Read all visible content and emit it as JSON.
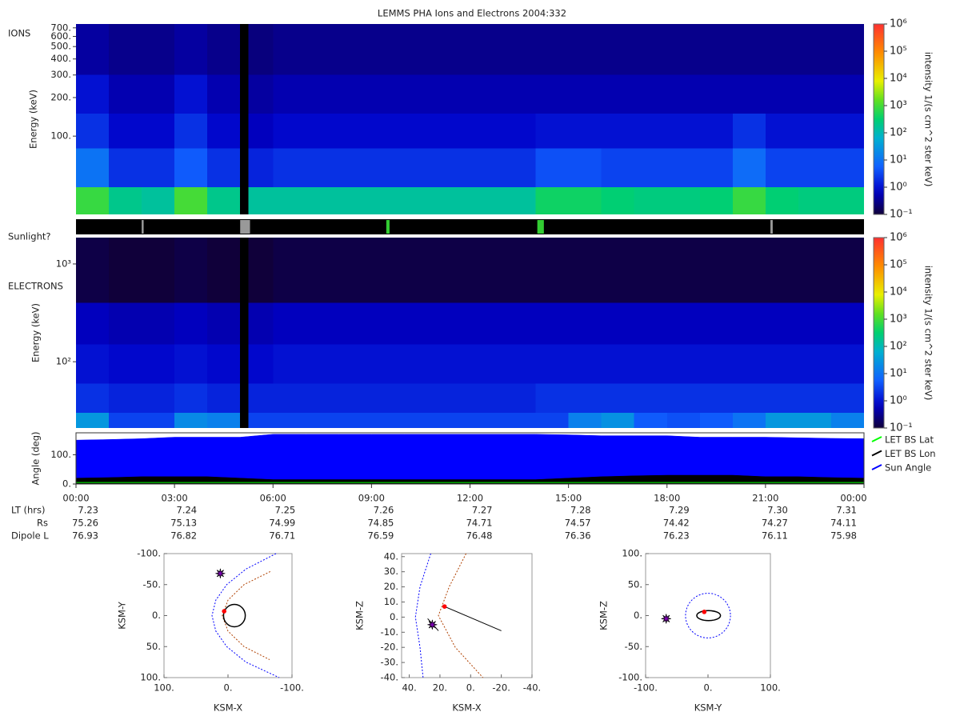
{
  "title": "LEMMS PHA Ions and Electrons  2004:332",
  "chart_data": [
    {
      "type": "heatmap",
      "label": "IONS",
      "y_label": "Energy (keV)",
      "colorbar_label": "intensity 1/(s cm^2 ster keV)",
      "x": [
        0,
        1,
        2,
        3,
        4,
        5,
        5.25,
        6,
        7,
        8,
        9,
        10,
        11,
        12,
        13,
        14,
        15,
        16,
        17,
        18,
        19,
        20,
        21,
        22,
        23,
        24
      ],
      "xlim": [
        0,
        24
      ],
      "y_edges": [
        24.5,
        40,
        80,
        150,
        300,
        750
      ],
      "ylim": [
        24.5,
        750
      ],
      "log_y": true,
      "yticks": [
        {
          "value": 100,
          "label": "100."
        },
        {
          "value": 200,
          "label": "200."
        },
        {
          "value": 300,
          "label": "300."
        },
        {
          "value": 400,
          "label": "400."
        },
        {
          "value": 500,
          "label": "500."
        },
        {
          "value": 600,
          "label": "600."
        },
        {
          "value": 700,
          "label": "700."
        }
      ],
      "zlim": [
        0.1,
        1000000
      ],
      "log_z": true,
      "zticks": [
        {
          "value": 0.1,
          "label": "10⁻¹"
        },
        {
          "value": 1,
          "label": "10⁰"
        },
        {
          "value": 10,
          "label": "10¹"
        },
        {
          "value": 100,
          "label": "10²"
        },
        {
          "value": 1000,
          "label": "10³"
        },
        {
          "value": 10000,
          "label": "10⁴"
        },
        {
          "value": 100000,
          "label": "10⁵"
        },
        {
          "value": 1000000,
          "label": "10⁶"
        }
      ],
      "values": [
        [
          800,
          200,
          150,
          1000,
          200,
          null,
          150,
          150,
          150,
          150,
          150,
          150,
          150,
          150,
          150,
          400,
          400,
          300,
          250,
          250,
          300,
          800,
          300,
          250,
          250
        ],
        [
          10,
          2,
          2,
          5,
          2,
          null,
          1.5,
          2,
          2,
          2,
          2,
          2,
          2,
          2,
          2,
          4,
          4,
          3,
          3,
          3,
          3,
          8,
          3,
          3,
          3
        ],
        [
          2,
          0.8,
          0.8,
          2,
          0.8,
          null,
          0.6,
          0.8,
          0.8,
          0.8,
          0.8,
          0.8,
          0.8,
          0.8,
          0.8,
          1,
          1,
          1,
          1,
          1,
          1,
          2,
          1,
          1,
          1
        ],
        [
          1,
          0.5,
          0.5,
          1,
          0.5,
          null,
          0.4,
          0.5,
          0.5,
          0.5,
          0.5,
          0.5,
          0.5,
          0.5,
          0.5,
          0.5,
          0.5,
          0.5,
          0.5,
          0.5,
          0.5,
          0.5,
          0.5,
          0.5,
          0.5
        ],
        [
          0.4,
          0.3,
          0.3,
          0.4,
          0.3,
          null,
          0.25,
          0.3,
          0.3,
          0.3,
          0.3,
          0.3,
          0.3,
          0.3,
          0.3,
          0.3,
          0.3,
          0.3,
          0.3,
          0.3,
          0.3,
          0.3,
          0.3,
          0.3,
          0.3
        ]
      ]
    },
    {
      "type": "strip",
      "label": "Sunlight?",
      "xlim": [
        0,
        24
      ],
      "segments": [
        {
          "start": 2.0,
          "end": 2.06,
          "color": "#999999"
        },
        {
          "start": 5.0,
          "end": 5.3,
          "color": "#999999"
        },
        {
          "start": 9.45,
          "end": 9.55,
          "color": "#33cc33"
        },
        {
          "start": 14.05,
          "end": 14.25,
          "color": "#33cc33"
        },
        {
          "start": 21.15,
          "end": 21.22,
          "color": "#999999"
        }
      ]
    },
    {
      "type": "heatmap",
      "label": "ELECTRONS",
      "y_label": "Energy (keV)",
      "colorbar_label": "intensity 1/(s cm^2 ster keV)",
      "x": [
        0,
        1,
        2,
        3,
        4,
        5,
        5.25,
        6,
        7,
        8,
        9,
        10,
        11,
        12,
        13,
        14,
        15,
        16,
        17,
        18,
        19,
        20,
        21,
        22,
        23,
        24
      ],
      "xlim": [
        0,
        24
      ],
      "y_edges": [
        21,
        30,
        60,
        150,
        400,
        1860
      ],
      "ylim": [
        21,
        1860
      ],
      "log_y": true,
      "yticks": [
        {
          "value": 100,
          "label": "10²"
        },
        {
          "value": 1000,
          "label": "10³"
        }
      ],
      "zlim": [
        0.1,
        1000000
      ],
      "log_z": true,
      "zticks": [
        {
          "value": 0.1,
          "label": "10⁻¹"
        },
        {
          "value": 1,
          "label": "10⁰"
        },
        {
          "value": 10,
          "label": "10¹"
        },
        {
          "value": 100,
          "label": "10²"
        },
        {
          "value": 1000,
          "label": "10³"
        },
        {
          "value": 10000,
          "label": "10⁴"
        },
        {
          "value": 100000,
          "label": "10⁵"
        },
        {
          "value": 1000000,
          "label": "10⁶"
        }
      ],
      "values": [
        [
          30,
          3,
          3,
          20,
          15,
          null,
          3,
          3,
          3,
          3,
          3,
          3,
          3,
          3,
          3,
          3,
          15,
          25,
          5,
          4,
          5,
          10,
          30,
          30,
          15
        ],
        [
          2,
          1.5,
          1.5,
          2,
          1.5,
          null,
          1.5,
          1.5,
          1.5,
          1.5,
          1.5,
          1.5,
          1.5,
          1.5,
          1.5,
          2,
          2,
          2,
          2,
          2,
          2,
          2,
          2,
          2,
          2
        ],
        [
          1,
          0.8,
          0.8,
          1,
          0.8,
          null,
          0.8,
          1,
          1,
          1,
          1,
          1,
          1,
          1,
          1,
          1,
          1,
          1,
          1,
          1,
          1,
          1,
          1,
          1,
          1
        ],
        [
          0.6,
          0.5,
          0.5,
          0.6,
          0.5,
          null,
          0.5,
          0.6,
          0.6,
          0.6,
          0.6,
          0.6,
          0.6,
          0.6,
          0.6,
          0.6,
          0.6,
          0.6,
          0.6,
          0.6,
          0.6,
          0.6,
          0.6,
          0.6,
          0.6
        ],
        [
          0.12,
          0.1,
          0.1,
          0.12,
          0.1,
          null,
          0.1,
          0.12,
          0.12,
          0.12,
          0.12,
          0.12,
          0.12,
          0.12,
          0.12,
          0.12,
          0.12,
          0.12,
          0.12,
          0.12,
          0.12,
          0.12,
          0.12,
          0.12,
          0.12
        ]
      ]
    },
    {
      "type": "area",
      "y_label": "Angle (deg)",
      "x": [
        0,
        1,
        2,
        3,
        4,
        5,
        6,
        7,
        8,
        9,
        10,
        11,
        12,
        13,
        14,
        15,
        16,
        17,
        18,
        19,
        20,
        21,
        22,
        23,
        24
      ],
      "xlim": [
        0,
        24
      ],
      "xticks": [
        {
          "value": 0,
          "label": "00:00"
        },
        {
          "value": 3,
          "label": "03:00"
        },
        {
          "value": 6,
          "label": "06:00"
        },
        {
          "value": 9,
          "label": "09:00"
        },
        {
          "value": 12,
          "label": "12:00"
        },
        {
          "value": 15,
          "label": "15:00"
        },
        {
          "value": 18,
          "label": "18:00"
        },
        {
          "value": 21,
          "label": "21:00"
        },
        {
          "value": 24,
          "label": "00:00"
        }
      ],
      "ylim": [
        0,
        175
      ],
      "yticks": [
        {
          "value": 0,
          "label": "0."
        },
        {
          "value": 100,
          "label": "100."
        }
      ],
      "series": [
        {
          "name": "LET BS Lat",
          "color": "#00ff00",
          "style": "line",
          "values": [
            5,
            5,
            5,
            5,
            5,
            5,
            5,
            5,
            5,
            5,
            5,
            5,
            5,
            5,
            5,
            5,
            5,
            5,
            5,
            5,
            5,
            5,
            5,
            5,
            5
          ]
        },
        {
          "name": "LET BS Lon",
          "color": "#000000",
          "style": "area",
          "values": [
            20,
            22,
            25,
            25,
            25,
            20,
            15,
            15,
            15,
            15,
            15,
            15,
            15,
            15,
            15,
            20,
            25,
            28,
            30,
            30,
            30,
            25,
            25,
            22,
            20
          ]
        },
        {
          "name": "Sun Angle",
          "color": "#0000ff",
          "style": "area",
          "values": [
            150,
            152,
            155,
            160,
            160,
            160,
            170,
            170,
            170,
            170,
            170,
            170,
            170,
            170,
            170,
            168,
            165,
            165,
            165,
            160,
            160,
            160,
            158,
            156,
            155
          ]
        }
      ]
    },
    {
      "type": "orbit",
      "x_label": "KSM-X",
      "y_label": "KSM-Y",
      "xlim": [
        100,
        -100
      ],
      "ylim": [
        100,
        -100
      ],
      "xticks": [
        {
          "value": 100,
          "label": "100."
        },
        {
          "value": 0,
          "label": "0."
        },
        {
          "value": -100,
          "label": "-100."
        }
      ],
      "yticks": [
        {
          "value": -100,
          "label": "-100."
        },
        {
          "value": -50,
          "label": "-50."
        },
        {
          "value": 0,
          "label": "0."
        },
        {
          "value": 50,
          "label": "50."
        },
        {
          "value": 100,
          "label": "100."
        }
      ],
      "curves": [
        {
          "color": "#0000ff",
          "dashed": true,
          "x": [
            -75,
            -28,
            2,
            19,
            25,
            19,
            2,
            -28,
            -80
          ],
          "y": [
            -100,
            -75,
            -50,
            -25,
            0,
            25,
            50,
            75,
            100
          ]
        },
        {
          "color": "#b04000",
          "dashed": true,
          "x": [
            -66,
            -25,
            0,
            9,
            0,
            -25,
            -65
          ],
          "y": [
            -71,
            -50,
            -25,
            0,
            25,
            50,
            71
          ]
        }
      ],
      "ellipses": [
        {
          "color": "#000000",
          "dashed": false,
          "cx": -10,
          "cy": 0,
          "rx": 17,
          "ry": 18
        }
      ],
      "points": [
        {
          "color": "#ff0000",
          "marker": "dot",
          "x": [
            6
          ],
          "y": [
            -7
          ]
        },
        {
          "color": "#7a00b0",
          "marker": "star",
          "x": [
            12
          ],
          "y": [
            -68
          ]
        }
      ]
    },
    {
      "type": "orbit",
      "x_label": "KSM-X",
      "y_label": "KSM-Z",
      "xlim": [
        45,
        -40
      ],
      "ylim": [
        -40,
        42
      ],
      "xticks": [
        {
          "value": 40,
          "label": "40."
        },
        {
          "value": 20,
          "label": "20."
        },
        {
          "value": 0,
          "label": "0."
        },
        {
          "value": -20,
          "label": "-20."
        },
        {
          "value": -40,
          "label": "-40."
        }
      ],
      "yticks": [
        {
          "value": 40,
          "label": "40."
        },
        {
          "value": 30,
          "label": "30."
        },
        {
          "value": 20,
          "label": "20."
        },
        {
          "value": 10,
          "label": "10."
        },
        {
          "value": 0,
          "label": "0."
        },
        {
          "value": -10,
          "label": "-10."
        },
        {
          "value": -20,
          "label": "-20."
        },
        {
          "value": -30,
          "label": "-30."
        },
        {
          "value": -40,
          "label": "-40."
        }
      ],
      "curves": [
        {
          "color": "#0000ff",
          "dashed": true,
          "x": [
            26,
            33,
            36,
            33,
            31
          ],
          "y": [
            42,
            20,
            0,
            -20,
            -40
          ]
        },
        {
          "color": "#b04000",
          "dashed": true,
          "x": [
            3,
            14,
            21,
            10,
            -8
          ],
          "y": [
            42,
            20,
            1,
            -20,
            -40
          ]
        },
        {
          "color": "#000000",
          "dashed": false,
          "x": [
            17,
            -20
          ],
          "y": [
            7,
            -9
          ]
        },
        {
          "color": "#000000",
          "dashed": false,
          "x": [
            28,
            21
          ],
          "y": [
            -1,
            -9
          ]
        }
      ],
      "ellipses": [],
      "points": [
        {
          "color": "#ff0000",
          "marker": "dot",
          "x": [
            17
          ],
          "y": [
            7
          ]
        },
        {
          "color": "#7a00b0",
          "marker": "star",
          "x": [
            25
          ],
          "y": [
            -5
          ]
        }
      ]
    },
    {
      "type": "orbit",
      "x_label": "KSM-Y",
      "y_label": "KSM-Z",
      "xlim": [
        -100,
        100
      ],
      "ylim": [
        -100,
        100
      ],
      "xticks": [
        {
          "value": -100,
          "label": "-100."
        },
        {
          "value": 0,
          "label": "0."
        },
        {
          "value": 100,
          "label": "100."
        }
      ],
      "yticks": [
        {
          "value": 100,
          "label": "100."
        },
        {
          "value": 50,
          "label": "50."
        },
        {
          "value": 0,
          "label": "0."
        },
        {
          "value": -50,
          "label": "-50."
        },
        {
          "value": -100,
          "label": "-100."
        }
      ],
      "curves": [],
      "ellipses": [
        {
          "color": "#0000ff",
          "dashed": true,
          "cx": 0,
          "cy": 0,
          "rx": 36,
          "ry": 36
        },
        {
          "color": "#000000",
          "dashed": false,
          "cx": 1,
          "cy": 0,
          "rx": 19,
          "ry": 8
        }
      ],
      "points": [
        {
          "color": "#ff0000",
          "marker": "dot",
          "x": [
            -6
          ],
          "y": [
            6
          ]
        },
        {
          "color": "#7a00b0",
          "marker": "star",
          "x": [
            -67
          ],
          "y": [
            -5
          ]
        }
      ]
    }
  ],
  "ephemeris": {
    "rows": [
      {
        "label": "LT (hrs)",
        "values": [
          "7.23",
          "7.24",
          "7.25",
          "7.26",
          "7.27",
          "7.28",
          "7.29",
          "7.30",
          "7.31"
        ]
      },
      {
        "label": "Rs",
        "values": [
          "75.26",
          "75.13",
          "74.99",
          "74.85",
          "74.71",
          "74.57",
          "74.42",
          "74.27",
          "74.11"
        ]
      },
      {
        "label": "Dipole L",
        "values": [
          "76.93",
          "76.82",
          "76.71",
          "76.59",
          "76.48",
          "76.36",
          "76.23",
          "76.11",
          "75.98"
        ]
      }
    ]
  }
}
